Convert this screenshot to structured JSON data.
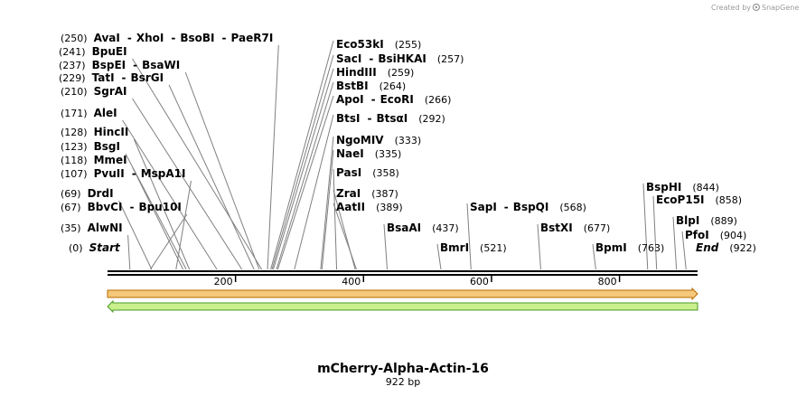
{
  "credit": {
    "created_by": "Created by",
    "brand": "SnapGene"
  },
  "sequence": {
    "name": "mCherry-Alpha-Actin-16",
    "length_label": "922 bp",
    "length": 922
  },
  "colors": {
    "feature_fill": "#f5c87a",
    "feature_border": "#b66a00",
    "orf_fill": "#c9f08c",
    "orf_border": "#4a9a2a",
    "line": "#808080",
    "backbone": "#000000"
  },
  "axis": {
    "ticks": [
      200,
      400,
      600,
      800
    ]
  },
  "features": [
    {
      "name": "feature-arrow",
      "start": 1,
      "end": 922,
      "direction": "forward",
      "row": 0
    },
    {
      "name": "orf-arrow",
      "start": 1,
      "end": 922,
      "direction": "reverse",
      "row": 1
    }
  ],
  "sites": [
    {
      "pos": 250,
      "pos_label": "(250)",
      "enzymes": [
        "AvaI",
        "XhoI",
        "BsoBI",
        "PaeR7I"
      ]
    },
    {
      "pos": 241,
      "pos_label": "(241)",
      "enzymes": [
        "BpuEI"
      ]
    },
    {
      "pos": 237,
      "pos_label": "(237)",
      "enzymes": [
        "BspEI",
        "BsaWI"
      ]
    },
    {
      "pos": 229,
      "pos_label": "(229)",
      "enzymes": [
        "TatI",
        "BsrGI"
      ]
    },
    {
      "pos": 210,
      "pos_label": "(210)",
      "enzymes": [
        "SgrAI"
      ]
    },
    {
      "pos": 171,
      "pos_label": "(171)",
      "enzymes": [
        "AleI"
      ]
    },
    {
      "pos": 128,
      "pos_label": "(128)",
      "enzymes": [
        "HincII"
      ]
    },
    {
      "pos": 123,
      "pos_label": "(123)",
      "enzymes": [
        "BsgI"
      ]
    },
    {
      "pos": 118,
      "pos_label": "(118)",
      "enzymes": [
        "MmeI"
      ]
    },
    {
      "pos": 107,
      "pos_label": "(107)",
      "enzymes": [
        "PvuII",
        "MspA1I"
      ]
    },
    {
      "pos": 69,
      "pos_label": "(69)",
      "enzymes": [
        "DrdI"
      ]
    },
    {
      "pos": 67,
      "pos_label": "(67)",
      "enzymes": [
        "BbvCI",
        "Bpu10I"
      ]
    },
    {
      "pos": 35,
      "pos_label": "(35)",
      "enzymes": [
        "AlwNI"
      ]
    },
    {
      "pos": 0,
      "pos_label": "(0)",
      "enzymes": [
        "Start"
      ],
      "italic": true
    },
    {
      "pos": 255,
      "pos_label": "(255)",
      "enzymes": [
        "Eco53kI"
      ]
    },
    {
      "pos": 257,
      "pos_label": "(257)",
      "enzymes": [
        "SacI",
        "BsiHKAI"
      ]
    },
    {
      "pos": 259,
      "pos_label": "(259)",
      "enzymes": [
        "HindIII"
      ]
    },
    {
      "pos": 264,
      "pos_label": "(264)",
      "enzymes": [
        "BstBI"
      ]
    },
    {
      "pos": 266,
      "pos_label": "(266)",
      "enzymes": [
        "ApoI",
        "EcoRI"
      ]
    },
    {
      "pos": 292,
      "pos_label": "(292)",
      "enzymes": [
        "BtsI",
        "BtsαI"
      ]
    },
    {
      "pos": 333,
      "pos_label": "(333)",
      "enzymes": [
        "NgoMIV"
      ]
    },
    {
      "pos": 335,
      "pos_label": "(335)",
      "enzymes": [
        "NaeI"
      ]
    },
    {
      "pos": 358,
      "pos_label": "(358)",
      "enzymes": [
        "PasI"
      ]
    },
    {
      "pos": 387,
      "pos_label": "(387)",
      "enzymes": [
        "ZraI"
      ]
    },
    {
      "pos": 389,
      "pos_label": "(389)",
      "enzymes": [
        "AatII"
      ]
    },
    {
      "pos": 437,
      "pos_label": "(437)",
      "enzymes": [
        "BsaAI"
      ]
    },
    {
      "pos": 521,
      "pos_label": "(521)",
      "enzymes": [
        "BmrI"
      ]
    },
    {
      "pos": 568,
      "pos_label": "(568)",
      "enzymes": [
        "SapI",
        "BspQI"
      ]
    },
    {
      "pos": 677,
      "pos_label": "(677)",
      "enzymes": [
        "BstXI"
      ]
    },
    {
      "pos": 763,
      "pos_label": "(763)",
      "enzymes": [
        "BpmI"
      ]
    },
    {
      "pos": 844,
      "pos_label": "(844)",
      "enzymes": [
        "BspHI"
      ]
    },
    {
      "pos": 858,
      "pos_label": "(858)",
      "enzymes": [
        "EcoP15I"
      ]
    },
    {
      "pos": 889,
      "pos_label": "(889)",
      "enzymes": [
        "BlpI"
      ]
    },
    {
      "pos": 904,
      "pos_label": "(904)",
      "enzymes": [
        "PfoI"
      ]
    },
    {
      "pos": 922,
      "pos_label": "(922)",
      "enzymes": [
        "End"
      ],
      "italic": true
    }
  ]
}
